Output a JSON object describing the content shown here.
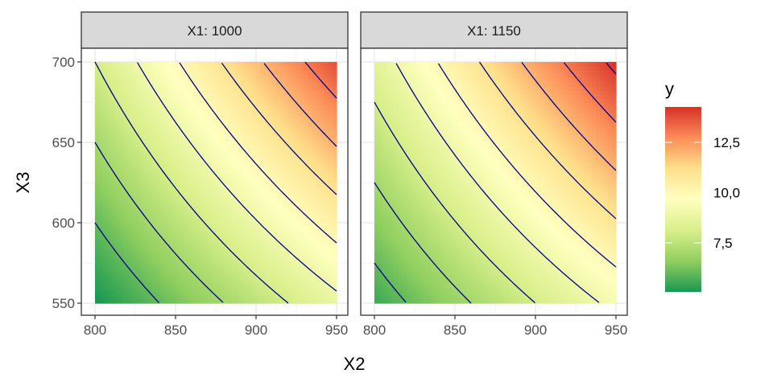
{
  "chart_data": {
    "type": "heatmap",
    "subtype": "filled contour surface with contour lines, faceted",
    "xlabel": "X2",
    "ylabel": "X3",
    "xlim": [
      800,
      950
    ],
    "ylim": [
      550,
      700
    ],
    "xticks": [
      "800",
      "850",
      "900",
      "950"
    ],
    "yticks": [
      "550",
      "600",
      "650",
      "700"
    ],
    "facets": [
      {
        "label": "X1: 1000",
        "surface": {
          "y_at_800_550": 5.0,
          "slope_x2_per150": 3.75,
          "slope_x3_per150": 3.0,
          "interaction_per150sq": 2.0
        }
      },
      {
        "label": "X1: 1150",
        "surface": {
          "y_at_800_550": 5.5,
          "slope_x2_per150": 3.75,
          "slope_x3_per150": 3.0,
          "interaction_per150sq": 2.0
        }
      }
    ],
    "contour_levels": [
      6,
      7,
      8,
      9,
      10,
      11,
      12,
      13,
      14
    ],
    "contour_color": "#00008b",
    "legend": {
      "title": "y",
      "placement": "right",
      "range": [
        5.06,
        14.26
      ],
      "ticks": [
        {
          "value": 7.5,
          "label": "7,5"
        },
        {
          "value": 10.0,
          "label": "10,0"
        },
        {
          "value": 12.5,
          "label": "12,5"
        }
      ],
      "palette": [
        "#1a9850",
        "#91cf60",
        "#d9ef8b",
        "#ffffbf",
        "#fee08b",
        "#fc8d59",
        "#d73027"
      ]
    }
  }
}
